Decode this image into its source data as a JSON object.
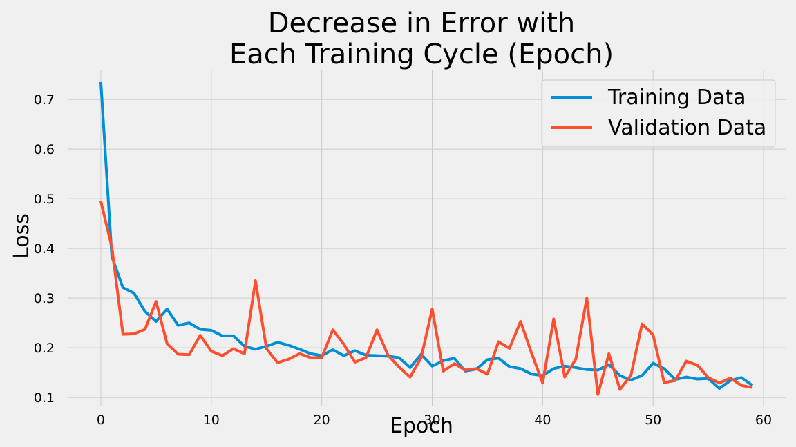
{
  "chart_data": {
    "type": "line",
    "title_lines": [
      "Decrease in Error with",
      "Each Training Cycle (Epoch)"
    ],
    "xlabel": "Epoch",
    "ylabel": "Loss",
    "xlim": [
      -3,
      62
    ],
    "ylim": [
      0.0835,
      0.7585
    ],
    "xticks": [
      0,
      10,
      20,
      30,
      40,
      50,
      60
    ],
    "yticks": [
      0.1,
      0.2,
      0.3,
      0.4,
      0.5,
      0.6,
      0.7
    ],
    "grid": true,
    "legend_position": "top-right",
    "x": [
      0,
      1,
      2,
      3,
      4,
      5,
      6,
      7,
      8,
      9,
      10,
      11,
      12,
      13,
      14,
      15,
      16,
      17,
      18,
      19,
      20,
      21,
      22,
      23,
      24,
      25,
      26,
      27,
      28,
      29,
      30,
      31,
      32,
      33,
      34,
      35,
      36,
      37,
      38,
      39,
      40,
      41,
      42,
      43,
      44,
      45,
      46,
      47,
      48,
      49,
      50,
      51,
      52,
      53,
      54,
      55,
      56,
      57,
      58,
      59
    ],
    "series": [
      {
        "name": "Training Data",
        "color": "#008fd5",
        "values": [
          0.735,
          0.383,
          0.321,
          0.31,
          0.273,
          0.253,
          0.278,
          0.245,
          0.25,
          0.237,
          0.235,
          0.224,
          0.224,
          0.203,
          0.197,
          0.203,
          0.211,
          0.205,
          0.197,
          0.188,
          0.184,
          0.196,
          0.184,
          0.194,
          0.185,
          0.184,
          0.183,
          0.18,
          0.16,
          0.187,
          0.163,
          0.174,
          0.179,
          0.153,
          0.157,
          0.176,
          0.179,
          0.162,
          0.158,
          0.147,
          0.144,
          0.158,
          0.163,
          0.16,
          0.156,
          0.155,
          0.166,
          0.144,
          0.135,
          0.144,
          0.169,
          0.158,
          0.136,
          0.141,
          0.137,
          0.138,
          0.118,
          0.134,
          0.14,
          0.124
        ]
      },
      {
        "name": "Validation Data",
        "color": "#fc4f30",
        "values": [
          0.495,
          0.402,
          0.227,
          0.228,
          0.237,
          0.293,
          0.208,
          0.187,
          0.186,
          0.225,
          0.193,
          0.184,
          0.198,
          0.188,
          0.335,
          0.198,
          0.17,
          0.177,
          0.188,
          0.18,
          0.18,
          0.236,
          0.207,
          0.171,
          0.18,
          0.236,
          0.185,
          0.161,
          0.141,
          0.18,
          0.278,
          0.153,
          0.168,
          0.155,
          0.158,
          0.147,
          0.212,
          0.199,
          0.253,
          0.189,
          0.129,
          0.258,
          0.141,
          0.177,
          0.3,
          0.106,
          0.188,
          0.116,
          0.145,
          0.248,
          0.226,
          0.13,
          0.134,
          0.173,
          0.165,
          0.14,
          0.129,
          0.139,
          0.124,
          0.12
        ]
      }
    ]
  }
}
